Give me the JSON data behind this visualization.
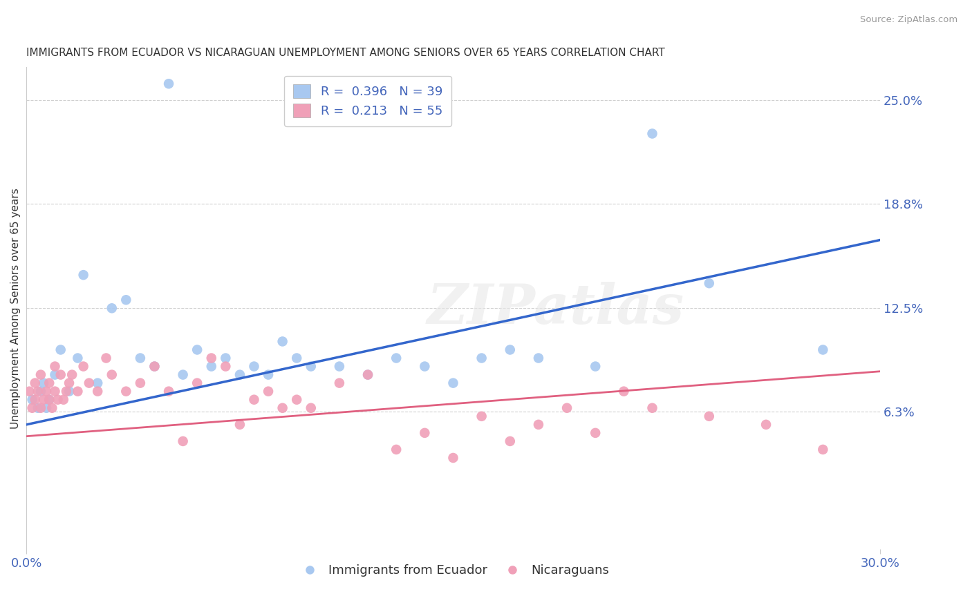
{
  "title": "IMMIGRANTS FROM ECUADOR VS NICARAGUAN UNEMPLOYMENT AMONG SENIORS OVER 65 YEARS CORRELATION CHART",
  "source": "Source: ZipAtlas.com",
  "ylabel": "Unemployment Among Seniors over 65 years",
  "xlim": [
    0.0,
    30.0
  ],
  "ylim": [
    -2.0,
    27.0
  ],
  "yticks": [
    6.3,
    12.5,
    18.8,
    25.0
  ],
  "yticklabels": [
    "6.3%",
    "12.5%",
    "18.8%",
    "25.0%"
  ],
  "xticklabels": [
    "0.0%",
    "30.0%"
  ],
  "watermark": "ZIPatlas",
  "blue_series": {
    "label": "Immigrants from Ecuador",
    "R": 0.396,
    "N": 39,
    "color": "#a8c8f0",
    "line_color": "#3366cc",
    "x": [
      0.2,
      0.4,
      0.5,
      0.6,
      0.7,
      0.8,
      1.0,
      1.2,
      1.5,
      1.8,
      2.0,
      2.5,
      3.0,
      3.5,
      4.0,
      4.5,
      5.0,
      5.5,
      6.0,
      6.5,
      7.0,
      7.5,
      8.0,
      8.5,
      9.0,
      9.5,
      10.0,
      11.0,
      12.0,
      13.0,
      14.0,
      15.0,
      16.0,
      17.0,
      18.0,
      20.0,
      22.0,
      24.0,
      28.0
    ],
    "y": [
      7.0,
      6.5,
      7.5,
      8.0,
      6.5,
      7.0,
      8.5,
      10.0,
      7.5,
      9.5,
      14.5,
      8.0,
      12.5,
      13.0,
      9.5,
      9.0,
      26.0,
      8.5,
      10.0,
      9.0,
      9.5,
      8.5,
      9.0,
      8.5,
      10.5,
      9.5,
      9.0,
      9.0,
      8.5,
      9.5,
      9.0,
      8.0,
      9.5,
      10.0,
      9.5,
      9.0,
      23.0,
      14.0,
      10.0
    ]
  },
  "pink_series": {
    "label": "Nicaraguans",
    "R": 0.213,
    "N": 55,
    "color": "#f0a0b8",
    "line_color": "#e06080",
    "x": [
      0.1,
      0.2,
      0.3,
      0.3,
      0.4,
      0.5,
      0.5,
      0.6,
      0.7,
      0.8,
      0.8,
      0.9,
      1.0,
      1.0,
      1.1,
      1.2,
      1.3,
      1.4,
      1.5,
      1.6,
      1.8,
      2.0,
      2.2,
      2.5,
      2.8,
      3.0,
      3.5,
      4.0,
      4.5,
      5.0,
      5.5,
      6.0,
      6.5,
      7.0,
      7.5,
      8.0,
      8.5,
      9.0,
      9.5,
      10.0,
      11.0,
      12.0,
      13.0,
      14.0,
      15.0,
      16.0,
      17.0,
      18.0,
      19.0,
      20.0,
      21.0,
      22.0,
      24.0,
      26.0,
      28.0
    ],
    "y": [
      7.5,
      6.5,
      7.0,
      8.0,
      7.5,
      6.5,
      8.5,
      7.0,
      7.5,
      7.0,
      8.0,
      6.5,
      7.5,
      9.0,
      7.0,
      8.5,
      7.0,
      7.5,
      8.0,
      8.5,
      7.5,
      9.0,
      8.0,
      7.5,
      9.5,
      8.5,
      7.5,
      8.0,
      9.0,
      7.5,
      4.5,
      8.0,
      9.5,
      9.0,
      5.5,
      7.0,
      7.5,
      6.5,
      7.0,
      6.5,
      8.0,
      8.5,
      4.0,
      5.0,
      3.5,
      6.0,
      4.5,
      5.5,
      6.5,
      5.0,
      7.5,
      6.5,
      6.0,
      5.5,
      4.0
    ]
  },
  "blue_line_intercept": 5.5,
  "blue_line_slope": 0.37,
  "pink_line_intercept": 4.8,
  "pink_line_slope": 0.13
}
